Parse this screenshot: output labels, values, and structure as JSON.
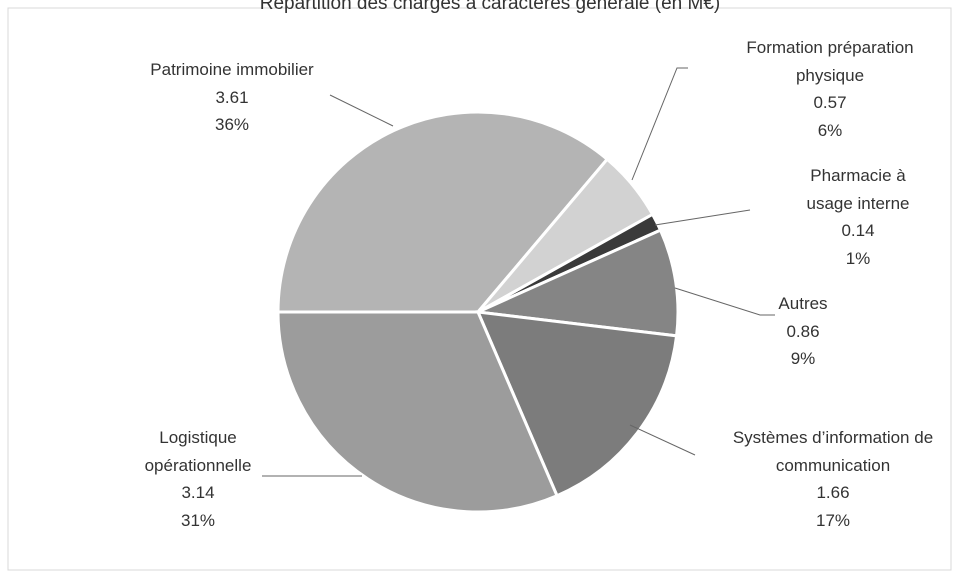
{
  "chart_data": {
    "type": "pie",
    "title": "Répartition des charges à caractères générale (en M€)",
    "categories": [
      "Patrimoine immobilier",
      "Formation préparation physique",
      "Pharmacie à usage interne",
      "Autres",
      "Systèmes d’information de communication",
      "Logistique opérationnelle"
    ],
    "values": [
      3.61,
      0.57,
      0.14,
      0.86,
      1.66,
      3.14
    ],
    "percent_labels": [
      "36%",
      "6%",
      "1%",
      "9%",
      "17%",
      "31%"
    ],
    "colors": [
      "#b4b4b4",
      "#d2d2d2",
      "#3a3a3a",
      "#858585",
      "#7c7c7c",
      "#9c9c9c"
    ]
  }
}
